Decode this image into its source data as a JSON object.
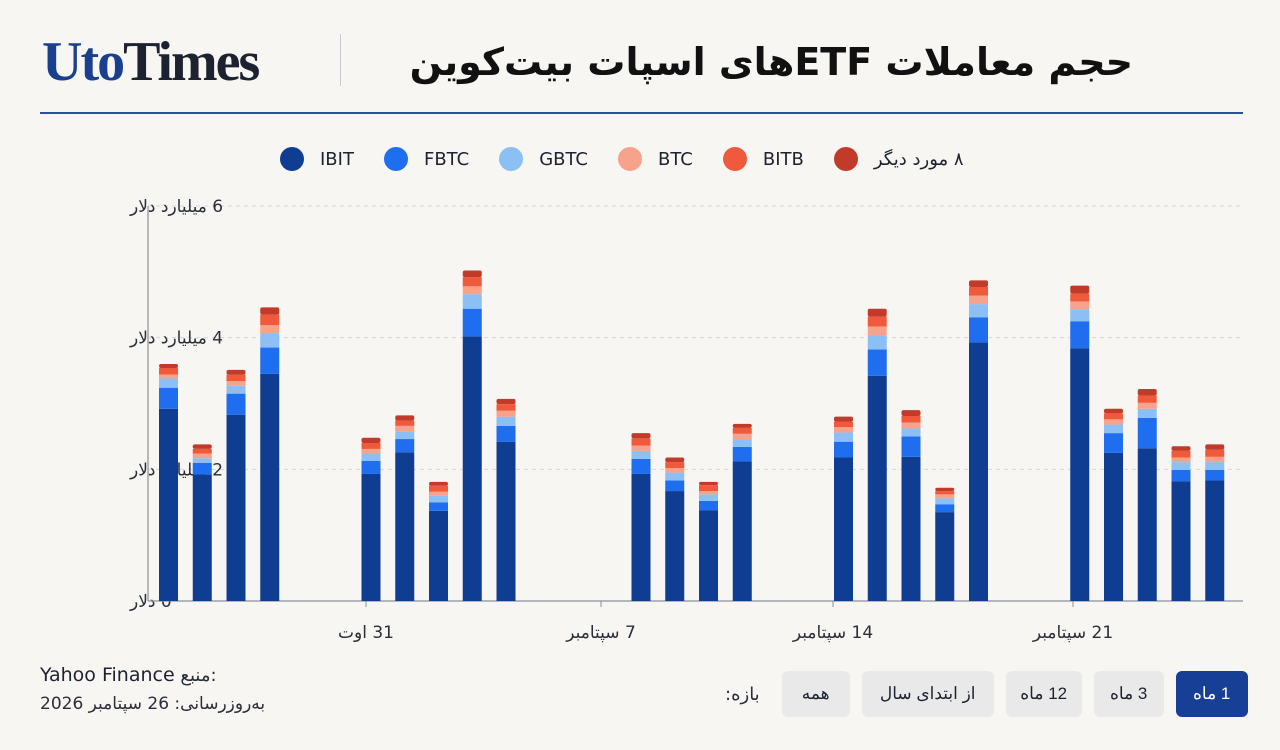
{
  "header": {
    "logo_part1": "Uto",
    "logo_part2": "Times",
    "title": "حجم معاملات ETFهای اسپات بیت‌کوین"
  },
  "legend": [
    {
      "label": "IBIT",
      "color": "#0f3d91"
    },
    {
      "label": "FBTC",
      "color": "#1f6ef0"
    },
    {
      "label": "GBTC",
      "color": "#8cc0f5"
    },
    {
      "label": "BTC",
      "color": "#f7a38c"
    },
    {
      "label": "BITB",
      "color": "#ef5a3c"
    },
    {
      "label": "۸ مورد دیگر",
      "color": "#c13a2a"
    }
  ],
  "chart_data": {
    "type": "bar",
    "stacked": true,
    "yticks": [
      "0 دلار",
      "2 میلیارد دلار",
      "4 میلیارد دلار",
      "6 میلیارد دلار"
    ],
    "ylim": [
      0,
      6
    ],
    "xticks": [
      "31 اوت",
      "7 سپتامبر",
      "14 سپتامبر",
      "21 سپتامبر"
    ],
    "grid": true,
    "series_names": [
      "IBIT",
      "FBTC",
      "GBTC",
      "BTC",
      "BITB",
      "۸ مورد دیگر"
    ],
    "bars": [
      {
        "slot": 0,
        "values": [
          2.92,
          0.32,
          0.14,
          0.06,
          0.1,
          0.06
        ]
      },
      {
        "slot": 1,
        "values": [
          1.92,
          0.18,
          0.07,
          0.07,
          0.07,
          0.07
        ]
      },
      {
        "slot": 2,
        "values": [
          2.83,
          0.32,
          0.12,
          0.07,
          0.1,
          0.07
        ]
      },
      {
        "slot": 3,
        "values": [
          3.45,
          0.4,
          0.22,
          0.12,
          0.16,
          0.11
        ]
      },
      {
        "slot": 6,
        "values": [
          1.93,
          0.2,
          0.11,
          0.07,
          0.09,
          0.08
        ]
      },
      {
        "slot": 7,
        "values": [
          2.26,
          0.2,
          0.12,
          0.08,
          0.08,
          0.08
        ]
      },
      {
        "slot": 8,
        "values": [
          1.37,
          0.13,
          0.1,
          0.06,
          0.09,
          0.06
        ]
      },
      {
        "slot": 9,
        "values": [
          4.02,
          0.42,
          0.22,
          0.12,
          0.14,
          0.1
        ]
      },
      {
        "slot": 10,
        "values": [
          2.42,
          0.24,
          0.14,
          0.09,
          0.1,
          0.08
        ]
      },
      {
        "slot": 14,
        "values": [
          1.93,
          0.23,
          0.12,
          0.08,
          0.11,
          0.08
        ]
      },
      {
        "slot": 15,
        "values": [
          1.67,
          0.16,
          0.12,
          0.07,
          0.09,
          0.07
        ]
      },
      {
        "slot": 16,
        "values": [
          1.38,
          0.14,
          0.1,
          0.05,
          0.09,
          0.05
        ]
      },
      {
        "slot": 17,
        "values": [
          2.12,
          0.22,
          0.12,
          0.08,
          0.09,
          0.06
        ]
      },
      {
        "slot": 20,
        "values": [
          2.18,
          0.24,
          0.14,
          0.08,
          0.08,
          0.08
        ]
      },
      {
        "slot": 21,
        "values": [
          3.42,
          0.4,
          0.22,
          0.13,
          0.15,
          0.12
        ]
      },
      {
        "slot": 22,
        "values": [
          2.19,
          0.31,
          0.12,
          0.09,
          0.1,
          0.09
        ]
      },
      {
        "slot": 23,
        "values": [
          1.35,
          0.12,
          0.09,
          0.06,
          0.05,
          0.05
        ]
      },
      {
        "slot": 24,
        "values": [
          3.93,
          0.38,
          0.2,
          0.13,
          0.13,
          0.1
        ]
      },
      {
        "slot": 27,
        "values": [
          3.84,
          0.41,
          0.18,
          0.12,
          0.12,
          0.12
        ]
      },
      {
        "slot": 28,
        "values": [
          2.25,
          0.3,
          0.13,
          0.08,
          0.09,
          0.07
        ]
      },
      {
        "slot": 29,
        "values": [
          2.32,
          0.46,
          0.14,
          0.09,
          0.11,
          0.1
        ]
      },
      {
        "slot": 30,
        "values": [
          1.82,
          0.17,
          0.12,
          0.07,
          0.1,
          0.07
        ]
      },
      {
        "slot": 31,
        "values": [
          1.83,
          0.16,
          0.12,
          0.08,
          0.11,
          0.08
        ]
      }
    ]
  },
  "footer": {
    "source_label": "منبع:",
    "source_name": "Yahoo Finance",
    "updated": "به‌روزرسانی: 26 سپتامبر 2026"
  },
  "range": {
    "label": "بازه:",
    "buttons": [
      "همه",
      "از ابتدای سال",
      "12 ماه",
      "3 ماه",
      "1 ماه"
    ],
    "active": "1 ماه"
  }
}
